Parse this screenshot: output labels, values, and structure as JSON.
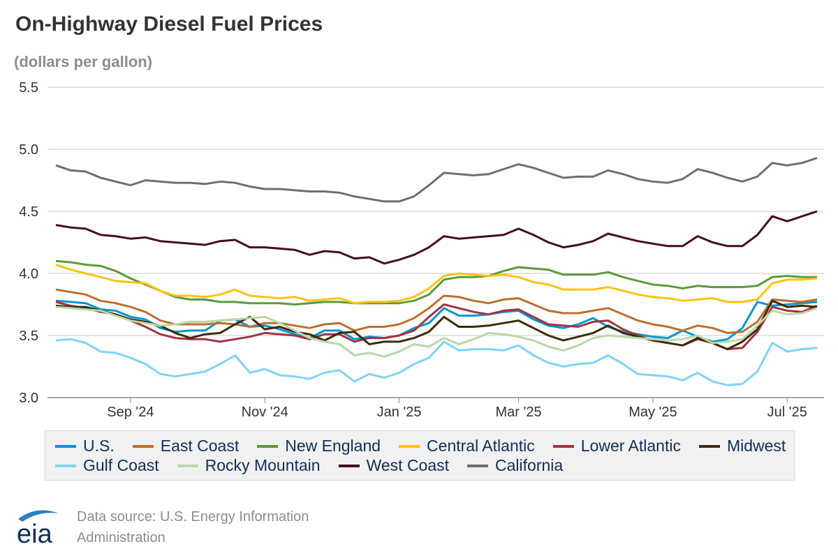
{
  "header": {
    "title": "On-Highway Diesel Fuel Prices",
    "subtitle": "(dollars per gallon)"
  },
  "footer": {
    "source": "Data source: U.S. Energy Information Administration",
    "logo_text": "eia"
  },
  "chart_data": {
    "type": "line",
    "title": "On-Highway Diesel Fuel Prices",
    "ylabel": "(dollars per gallon)",
    "xlabel": "",
    "ylim": [
      3.0,
      5.5
    ],
    "yticks": [
      "3.0",
      "3.5",
      "4.0",
      "4.5",
      "5.0",
      "5.5"
    ],
    "grid": true,
    "legend_position": "bottom",
    "x": [
      "2024-07-29",
      "2024-08-05",
      "2024-08-12",
      "2024-08-19",
      "2024-08-26",
      "2024-09-02",
      "2024-09-09",
      "2024-09-16",
      "2024-09-23",
      "2024-09-30",
      "2024-10-07",
      "2024-10-14",
      "2024-10-21",
      "2024-10-28",
      "2024-11-04",
      "2024-11-11",
      "2024-11-18",
      "2024-11-25",
      "2024-12-02",
      "2024-12-09",
      "2024-12-16",
      "2024-12-23",
      "2024-12-30",
      "2025-01-06",
      "2025-01-13",
      "2025-01-20",
      "2025-01-27",
      "2025-02-03",
      "2025-02-10",
      "2025-02-17",
      "2025-02-24",
      "2025-03-03",
      "2025-03-10",
      "2025-03-17",
      "2025-03-24",
      "2025-03-31",
      "2025-04-07",
      "2025-04-14",
      "2025-04-21",
      "2025-04-28",
      "2025-05-05",
      "2025-05-12",
      "2025-05-19",
      "2025-05-26",
      "2025-06-02",
      "2025-06-09",
      "2025-06-16",
      "2025-06-23",
      "2025-06-30",
      "2025-07-07",
      "2025-07-14",
      "2025-07-21"
    ],
    "x_ticks": [
      {
        "label": "Sep '24",
        "date": "2024-09-02"
      },
      {
        "label": "Nov '24",
        "date": "2024-11-04"
      },
      {
        "label": "Jan '25",
        "date": "2025-01-06"
      },
      {
        "label": "Mar '25",
        "date": "2025-03-03"
      },
      {
        "label": "May '25",
        "date": "2025-05-05"
      },
      {
        "label": "Jul '25",
        "date": "2025-07-07"
      }
    ],
    "series": [
      {
        "name": "U.S.",
        "color": "#0096d6",
        "values": [
          3.78,
          3.77,
          3.76,
          3.71,
          3.7,
          3.65,
          3.63,
          3.56,
          3.53,
          3.54,
          3.54,
          3.62,
          3.63,
          3.57,
          3.58,
          3.55,
          3.51,
          3.48,
          3.54,
          3.54,
          3.47,
          3.49,
          3.48,
          3.5,
          3.56,
          3.6,
          3.72,
          3.66,
          3.66,
          3.67,
          3.69,
          3.7,
          3.63,
          3.58,
          3.56,
          3.59,
          3.64,
          3.57,
          3.53,
          3.51,
          3.49,
          3.48,
          3.54,
          3.49,
          3.45,
          3.47,
          3.56,
          3.77,
          3.74,
          3.75,
          3.76,
          3.77
        ]
      },
      {
        "name": "East Coast",
        "color": "#bc6f30",
        "values": [
          3.87,
          3.85,
          3.83,
          3.78,
          3.76,
          3.73,
          3.69,
          3.62,
          3.59,
          3.59,
          3.59,
          3.6,
          3.59,
          3.57,
          3.6,
          3.6,
          3.58,
          3.56,
          3.59,
          3.6,
          3.54,
          3.57,
          3.57,
          3.59,
          3.64,
          3.72,
          3.82,
          3.81,
          3.78,
          3.76,
          3.79,
          3.8,
          3.75,
          3.7,
          3.68,
          3.68,
          3.7,
          3.72,
          3.67,
          3.62,
          3.59,
          3.57,
          3.54,
          3.58,
          3.56,
          3.52,
          3.53,
          3.61,
          3.79,
          3.78,
          3.77,
          3.79
        ]
      },
      {
        "name": "New England",
        "color": "#5a9b3b",
        "values": [
          4.1,
          4.09,
          4.07,
          4.06,
          4.02,
          3.96,
          3.91,
          3.86,
          3.81,
          3.79,
          3.79,
          3.77,
          3.77,
          3.76,
          3.76,
          3.76,
          3.75,
          3.76,
          3.77,
          3.77,
          3.76,
          3.76,
          3.76,
          3.76,
          3.78,
          3.83,
          3.95,
          3.97,
          3.97,
          3.98,
          4.02,
          4.05,
          4.04,
          4.03,
          3.99,
          3.99,
          3.99,
          4.01,
          3.97,
          3.94,
          3.91,
          3.9,
          3.88,
          3.9,
          3.89,
          3.89,
          3.89,
          3.9,
          3.97,
          3.98,
          3.97,
          3.97
        ]
      },
      {
        "name": "Central Atlantic",
        "color": "#ffc20e",
        "values": [
          4.07,
          4.03,
          4.0,
          3.97,
          3.94,
          3.93,
          3.92,
          3.86,
          3.82,
          3.82,
          3.81,
          3.83,
          3.87,
          3.82,
          3.81,
          3.8,
          3.81,
          3.78,
          3.79,
          3.8,
          3.76,
          3.77,
          3.77,
          3.78,
          3.81,
          3.88,
          3.98,
          4.0,
          3.99,
          3.98,
          3.99,
          3.97,
          3.93,
          3.91,
          3.87,
          3.87,
          3.87,
          3.89,
          3.86,
          3.83,
          3.81,
          3.8,
          3.78,
          3.79,
          3.8,
          3.77,
          3.77,
          3.79,
          3.92,
          3.95,
          3.95,
          3.96
        ]
      },
      {
        "name": "Lower Atlantic",
        "color": "#a33340",
        "values": [
          3.77,
          3.74,
          3.72,
          3.69,
          3.67,
          3.62,
          3.57,
          3.51,
          3.48,
          3.47,
          3.47,
          3.45,
          3.47,
          3.49,
          3.52,
          3.51,
          3.5,
          3.47,
          3.51,
          3.51,
          3.45,
          3.48,
          3.48,
          3.5,
          3.54,
          3.65,
          3.75,
          3.72,
          3.69,
          3.67,
          3.7,
          3.71,
          3.65,
          3.59,
          3.58,
          3.57,
          3.61,
          3.62,
          3.55,
          3.5,
          3.46,
          3.44,
          3.42,
          3.47,
          3.44,
          3.39,
          3.4,
          3.53,
          3.73,
          3.7,
          3.69,
          3.74
        ]
      },
      {
        "name": "Midwest",
        "color": "#3d2b05",
        "values": [
          3.74,
          3.73,
          3.73,
          3.7,
          3.67,
          3.63,
          3.61,
          3.58,
          3.52,
          3.48,
          3.51,
          3.52,
          3.59,
          3.65,
          3.55,
          3.57,
          3.53,
          3.51,
          3.46,
          3.52,
          3.53,
          3.43,
          3.45,
          3.45,
          3.48,
          3.53,
          3.65,
          3.57,
          3.57,
          3.58,
          3.6,
          3.62,
          3.56,
          3.5,
          3.46,
          3.49,
          3.52,
          3.58,
          3.52,
          3.49,
          3.46,
          3.44,
          3.42,
          3.48,
          3.44,
          3.39,
          3.45,
          3.55,
          3.78,
          3.73,
          3.74,
          3.73
        ]
      },
      {
        "name": "Gulf Coast",
        "color": "#7fd4f5",
        "values": [
          3.46,
          3.47,
          3.44,
          3.37,
          3.36,
          3.32,
          3.27,
          3.19,
          3.17,
          3.19,
          3.21,
          3.27,
          3.34,
          3.2,
          3.23,
          3.18,
          3.17,
          3.15,
          3.2,
          3.22,
          3.13,
          3.19,
          3.16,
          3.2,
          3.27,
          3.32,
          3.45,
          3.38,
          3.39,
          3.39,
          3.38,
          3.42,
          3.34,
          3.28,
          3.25,
          3.27,
          3.28,
          3.34,
          3.27,
          3.19,
          3.18,
          3.17,
          3.14,
          3.2,
          3.13,
          3.1,
          3.11,
          3.21,
          3.44,
          3.37,
          3.39,
          3.4
        ]
      },
      {
        "name": "Rocky Mountain",
        "color": "#b8d8a8",
        "values": [
          3.73,
          3.72,
          3.71,
          3.7,
          3.66,
          3.62,
          3.6,
          3.58,
          3.59,
          3.61,
          3.61,
          3.62,
          3.63,
          3.64,
          3.65,
          3.6,
          3.54,
          3.48,
          3.45,
          3.43,
          3.34,
          3.36,
          3.33,
          3.37,
          3.43,
          3.41,
          3.48,
          3.43,
          3.47,
          3.52,
          3.51,
          3.49,
          3.46,
          3.41,
          3.38,
          3.42,
          3.48,
          3.5,
          3.49,
          3.48,
          3.47,
          3.46,
          3.47,
          3.5,
          3.44,
          3.45,
          3.47,
          3.58,
          3.7,
          3.67,
          3.68,
          3.72
        ]
      },
      {
        "name": "West Coast",
        "color": "#450d1c",
        "values": [
          4.39,
          4.37,
          4.36,
          4.31,
          4.3,
          4.28,
          4.29,
          4.26,
          4.25,
          4.24,
          4.23,
          4.26,
          4.27,
          4.21,
          4.21,
          4.2,
          4.19,
          4.15,
          4.18,
          4.17,
          4.12,
          4.13,
          4.08,
          4.11,
          4.15,
          4.21,
          4.3,
          4.28,
          4.29,
          4.3,
          4.31,
          4.36,
          4.31,
          4.25,
          4.21,
          4.23,
          4.26,
          4.32,
          4.29,
          4.26,
          4.24,
          4.22,
          4.22,
          4.3,
          4.25,
          4.22,
          4.22,
          4.31,
          4.46,
          4.42,
          4.46,
          4.5
        ]
      },
      {
        "name": "California",
        "color": "#6f6f6f",
        "values": [
          4.87,
          4.83,
          4.82,
          4.77,
          4.74,
          4.71,
          4.75,
          4.74,
          4.73,
          4.73,
          4.72,
          4.74,
          4.73,
          4.7,
          4.68,
          4.68,
          4.67,
          4.66,
          4.66,
          4.65,
          4.62,
          4.6,
          4.58,
          4.58,
          4.62,
          4.71,
          4.81,
          4.8,
          4.79,
          4.8,
          4.84,
          4.88,
          4.85,
          4.81,
          4.77,
          4.78,
          4.78,
          4.83,
          4.8,
          4.76,
          4.74,
          4.73,
          4.76,
          4.84,
          4.81,
          4.77,
          4.74,
          4.78,
          4.89,
          4.87,
          4.89,
          4.93
        ]
      }
    ]
  }
}
